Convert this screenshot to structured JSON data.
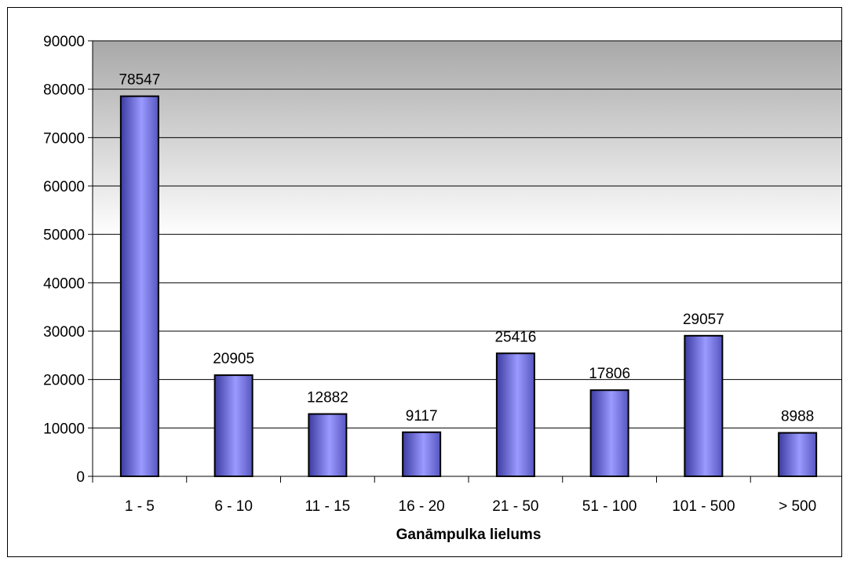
{
  "chart_data": {
    "type": "bar",
    "title": "",
    "xlabel": "Ganāmpulka lielums",
    "ylabel": "",
    "categories": [
      "1 - 5",
      "6 - 10",
      "11 - 15",
      "16 - 20",
      "21 - 50",
      "51 - 100",
      "101 - 500",
      "> 500"
    ],
    "values": [
      78547,
      20905,
      12882,
      9117,
      25416,
      17806,
      29057,
      8988
    ],
    "data_labels": [
      "78547",
      "20905",
      "12882",
      "9117",
      "25416",
      "17806",
      "29057",
      "8988"
    ],
    "y_ticks": [
      "0",
      "10000",
      "20000",
      "30000",
      "40000",
      "50000",
      "60000",
      "70000",
      "80000",
      "90000"
    ],
    "ylim": [
      0,
      90000
    ],
    "grid": true,
    "legend": "none",
    "colors": {
      "bar_light": "#9a9aff",
      "bar_dark": "#3b3ba0",
      "plot_bg_dark": "#a8a8a8",
      "plot_bg_light": "#ffffff",
      "grid": "#000000"
    }
  }
}
